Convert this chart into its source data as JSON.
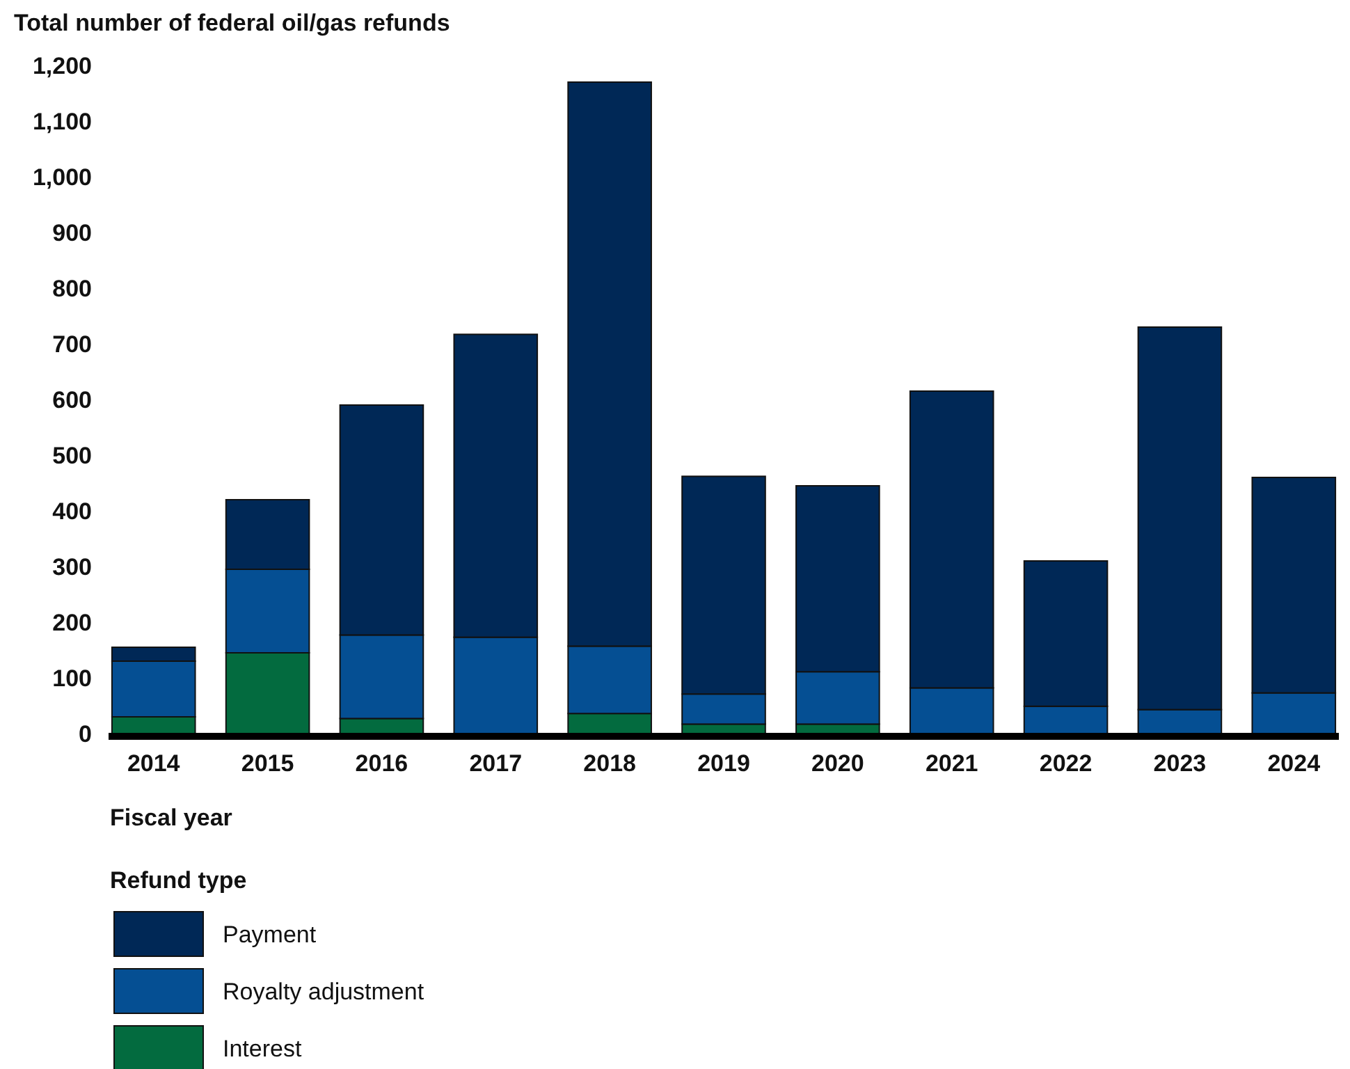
{
  "chart_data": {
    "type": "bar",
    "stacked": true,
    "ylabel": "Total number of federal oil/gas refunds",
    "xlabel": "Fiscal year",
    "legend_title": "Refund type",
    "legend": "bottom",
    "categories": [
      "2014",
      "2015",
      "2016",
      "2017",
      "2018",
      "2019",
      "2020",
      "2021",
      "2022",
      "2023",
      "2024"
    ],
    "series": [
      {
        "name": "Interest",
        "color": "#036b3f",
        "values": [
          30,
          145,
          27,
          null,
          36,
          17,
          17,
          0,
          0,
          0,
          0
        ]
      },
      {
        "name": "Royalty adjustment",
        "color": "#054f93",
        "values": [
          100,
          150,
          150,
          173,
          121,
          54,
          94,
          82,
          49,
          43,
          73
        ]
      },
      {
        "name": "Payment",
        "color": "#002856",
        "values": [
          25,
          125,
          413,
          544,
          1013,
          391,
          334,
          533,
          261,
          687,
          387
        ]
      }
    ],
    "ylim": [
      0,
      1200
    ],
    "yticks": [
      {
        "value": 0,
        "label": "0"
      },
      {
        "value": 100,
        "label": "100"
      },
      {
        "value": 200,
        "label": "200"
      },
      {
        "value": 300,
        "label": "300"
      },
      {
        "value": 400,
        "label": "400"
      },
      {
        "value": 500,
        "label": "500"
      },
      {
        "value": 600,
        "label": "600"
      },
      {
        "value": 700,
        "label": "700"
      },
      {
        "value": 800,
        "label": "800"
      },
      {
        "value": 900,
        "label": "900"
      },
      {
        "value": 1000,
        "label": "1,000"
      },
      {
        "value": 1100,
        "label": "1,100"
      },
      {
        "value": 1200,
        "label": "1,200"
      }
    ],
    "grid": false
  }
}
